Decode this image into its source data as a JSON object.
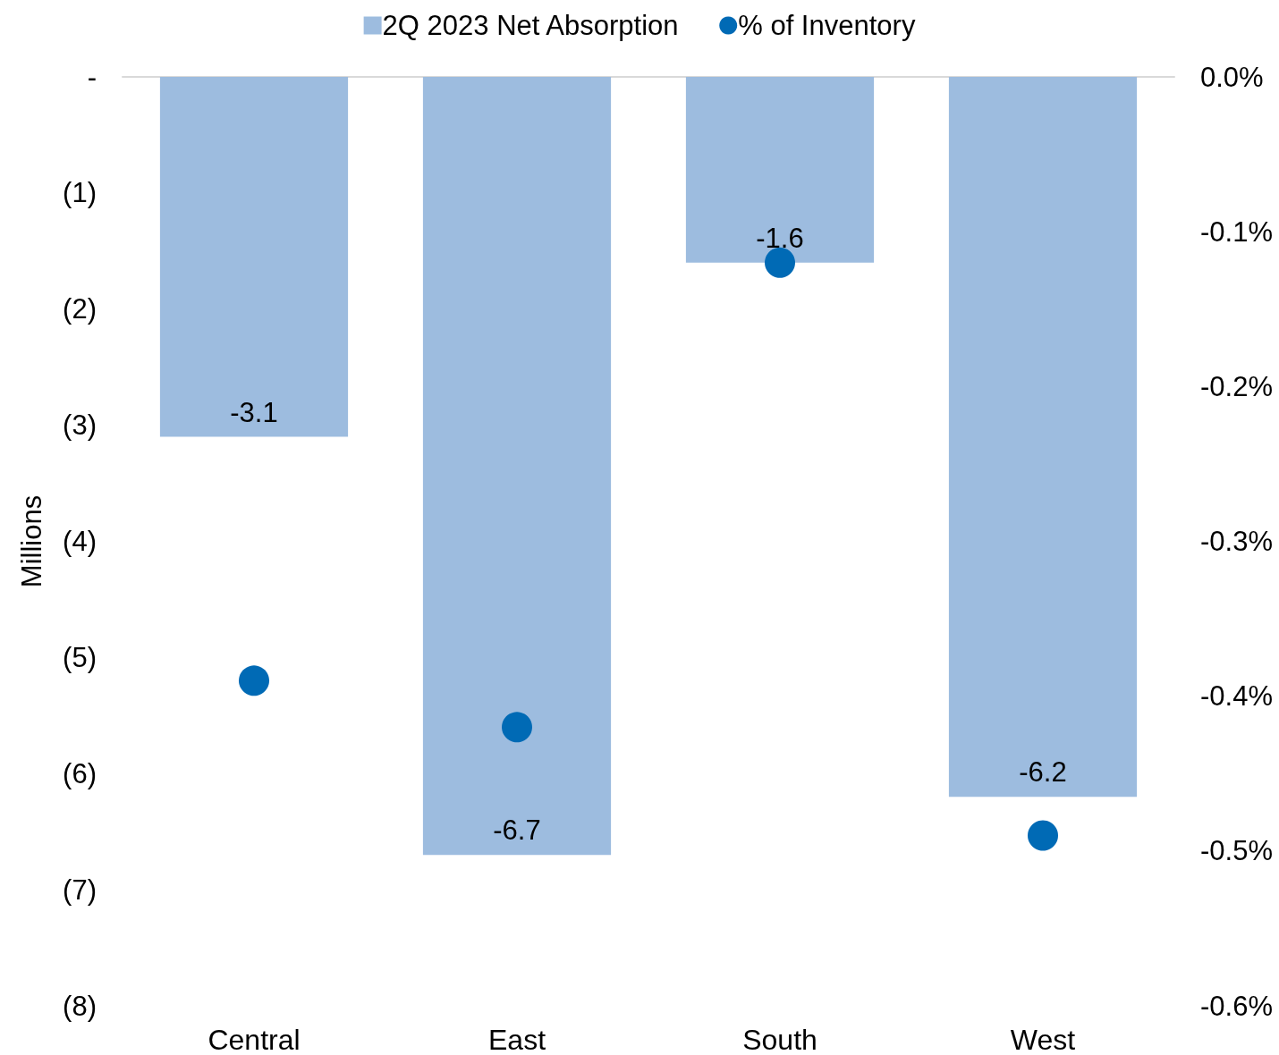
{
  "chart_data": {
    "type": "bar",
    "categories": [
      "Central",
      "East",
      "South",
      "West"
    ],
    "ylabel": "Millions",
    "series": [
      {
        "name": "2Q 2023 Net Absorption",
        "color": "#9dbcdf",
        "values": [
          -3.1,
          -6.7,
          -1.6,
          -6.2
        ],
        "value_labels": [
          "-3.1",
          "-6.7",
          "-1.6",
          "-6.2"
        ]
      },
      {
        "name": "% of Inventory",
        "type": "scatter",
        "axis": "y2",
        "color": "#006ab5",
        "x": [
          "Central",
          "East",
          "South",
          "West"
        ],
        "values": [
          -0.39,
          -0.42,
          -0.12,
          -0.49
        ]
      }
    ],
    "ylim": [
      -8,
      0
    ],
    "yticks": [
      {
        "value": 0,
        "label": "-"
      },
      {
        "value": -1,
        "label": "(1)"
      },
      {
        "value": -2,
        "label": "(2)"
      },
      {
        "value": -3,
        "label": "(3)"
      },
      {
        "value": -4,
        "label": "(4)"
      },
      {
        "value": -5,
        "label": "(5)"
      },
      {
        "value": -6,
        "label": "(6)"
      },
      {
        "value": -7,
        "label": "(7)"
      },
      {
        "value": -8,
        "label": "(8)"
      }
    ],
    "y2lim": [
      -0.6,
      0
    ],
    "y2ticks": [
      {
        "value": 0,
        "label": "0.0%"
      },
      {
        "value": -0.1,
        "label": "-0.1%"
      },
      {
        "value": -0.2,
        "label": "-0.2%"
      },
      {
        "value": -0.3,
        "label": "-0.3%"
      },
      {
        "value": -0.4,
        "label": "-0.4%"
      },
      {
        "value": -0.5,
        "label": "-0.5%"
      },
      {
        "value": -0.6,
        "label": "-0.6%"
      }
    ],
    "legend": "top",
    "marker": "circle",
    "grid": false
  }
}
